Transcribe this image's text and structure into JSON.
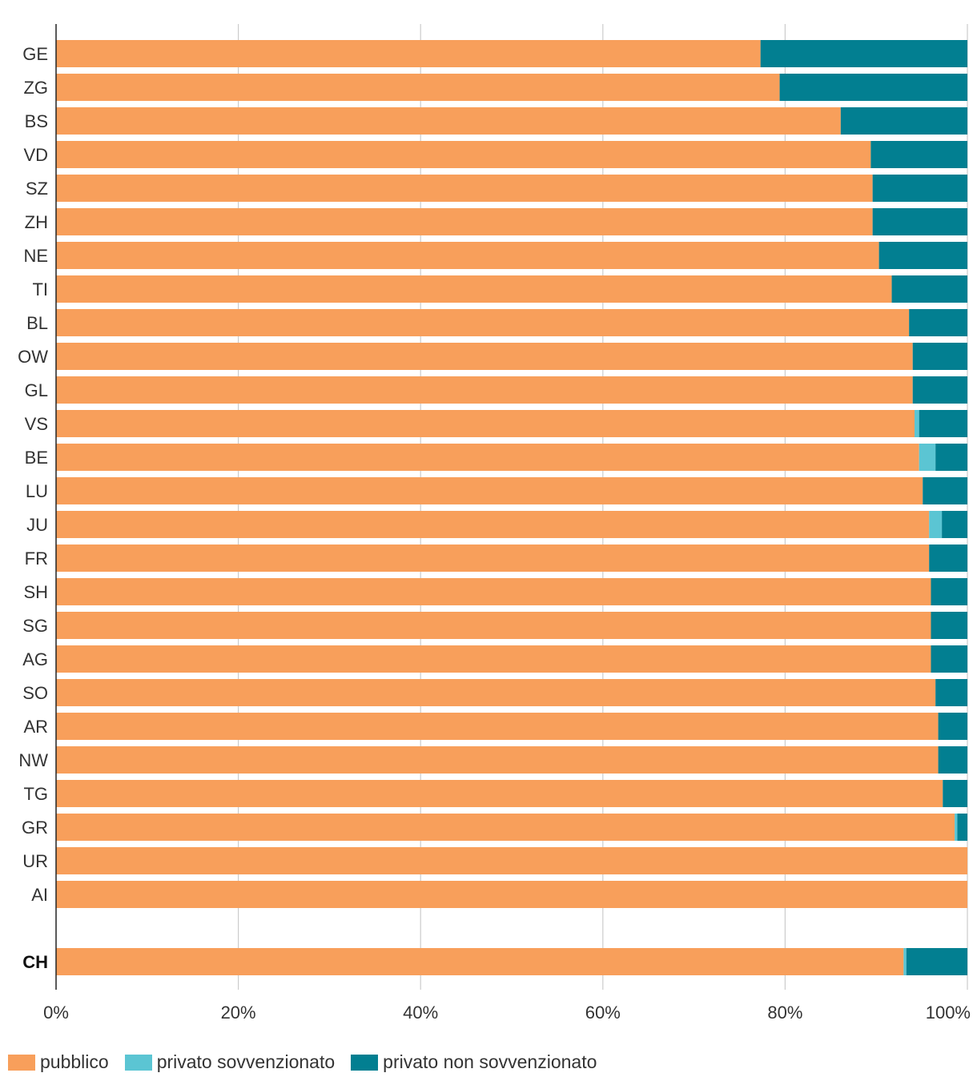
{
  "chart_data": {
    "type": "bar",
    "orientation": "horizontal",
    "stacked": true,
    "categories": [
      "GE",
      "ZG",
      "BS",
      "VD",
      "SZ",
      "ZH",
      "NE",
      "TI",
      "BL",
      "OW",
      "GL",
      "VS",
      "BE",
      "LU",
      "JU",
      "FR",
      "SH",
      "SG",
      "AG",
      "SO",
      "AR",
      "NW",
      "TG",
      "GR",
      "UR",
      "AI",
      "CH"
    ],
    "highlight_category": "CH",
    "series": [
      {
        "name": "pubblico",
        "color": "#F89F5B",
        "values": [
          77.3,
          79.4,
          86.1,
          89.4,
          89.6,
          89.6,
          90.3,
          91.7,
          93.6,
          94.0,
          94.0,
          94.2,
          94.7,
          95.1,
          95.8,
          95.8,
          96.0,
          96.0,
          96.0,
          96.5,
          96.8,
          96.8,
          97.3,
          98.6,
          100,
          100,
          93.0
        ]
      },
      {
        "name": "privato sovvenzionato",
        "color": "#5BC5D3",
        "values": [
          0,
          0,
          0,
          0,
          0,
          0,
          0,
          0,
          0,
          0,
          0,
          0.5,
          1.8,
          0,
          1.4,
          0,
          0,
          0,
          0,
          0,
          0,
          0,
          0,
          0.3,
          0,
          0,
          0.3
        ]
      },
      {
        "name": "privato non sovvenzionato",
        "color": "#027F91",
        "values": [
          22.7,
          20.6,
          13.9,
          10.6,
          10.4,
          10.4,
          9.7,
          8.3,
          6.4,
          6.0,
          6.0,
          5.3,
          3.5,
          4.9,
          2.8,
          4.2,
          4.0,
          4.0,
          4.0,
          3.5,
          3.2,
          3.2,
          2.7,
          1.1,
          0,
          0,
          6.7
        ]
      }
    ],
    "xlim": [
      0,
      100
    ],
    "xticks": [
      {
        "value": 0,
        "label": "0%"
      },
      {
        "value": 20,
        "label": "20%"
      },
      {
        "value": 40,
        "label": "40%"
      },
      {
        "value": 60,
        "label": "60%"
      },
      {
        "value": 80,
        "label": "80%"
      },
      {
        "value": 100,
        "label": "100%"
      }
    ],
    "grid": true,
    "legend": "bottom-left"
  }
}
